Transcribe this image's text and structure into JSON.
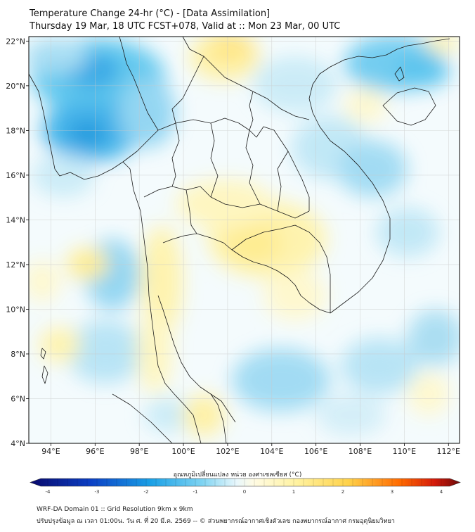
{
  "title": {
    "line1": "Temperature Change 24-hr (°C) - [Data Assimilation]",
    "line2": "Thursday 19 Mar, 18 UTC FCST+078, Valid at :: Mon 23 Mar, 00 UTC"
  },
  "map": {
    "lon_ticks": [
      "94°E",
      "96°E",
      "98°E",
      "100°E",
      "102°E",
      "104°E",
      "106°E",
      "108°E",
      "110°E",
      "112°E"
    ],
    "lat_ticks": [
      "22°N",
      "20°N",
      "18°N",
      "16°N",
      "14°N",
      "12°N",
      "10°N",
      "8°N",
      "6°N",
      "4°N"
    ],
    "lon_range": [
      93,
      112.5
    ],
    "lat_range": [
      4,
      22.2
    ]
  },
  "colorbar": {
    "label": "อุณหภูมิเปลี่ยนแปลง หน่วย องศาเซลเซียส (°C)",
    "ticks": [
      "-4",
      "-3",
      "-2",
      "-1",
      "0",
      "1",
      "2",
      "3",
      "4"
    ],
    "range": [
      -4,
      4
    ],
    "colors": {
      "min": "#08086b",
      "cold": "#1aa0e6",
      "cool": "#a8ddf2",
      "neutral": "#ffffff",
      "warm": "#fff2a0",
      "hot": "#ff6a00",
      "max": "#6b0a0a"
    }
  },
  "footer": {
    "line1": "WRF-DA Domain 01 :: Grid Resolution 9km x 9km",
    "line2": "ปรับปรุงข้อมูล ณ เวลา 01:00น. วัน ศ. ที่ 20 มี.ค. 2569 -- © ส่วนพยากรณ์อากาศเชิงตัวเลข กองพยากรณ์อากาศ กรมอุตุนิยมวิทยา"
  }
}
